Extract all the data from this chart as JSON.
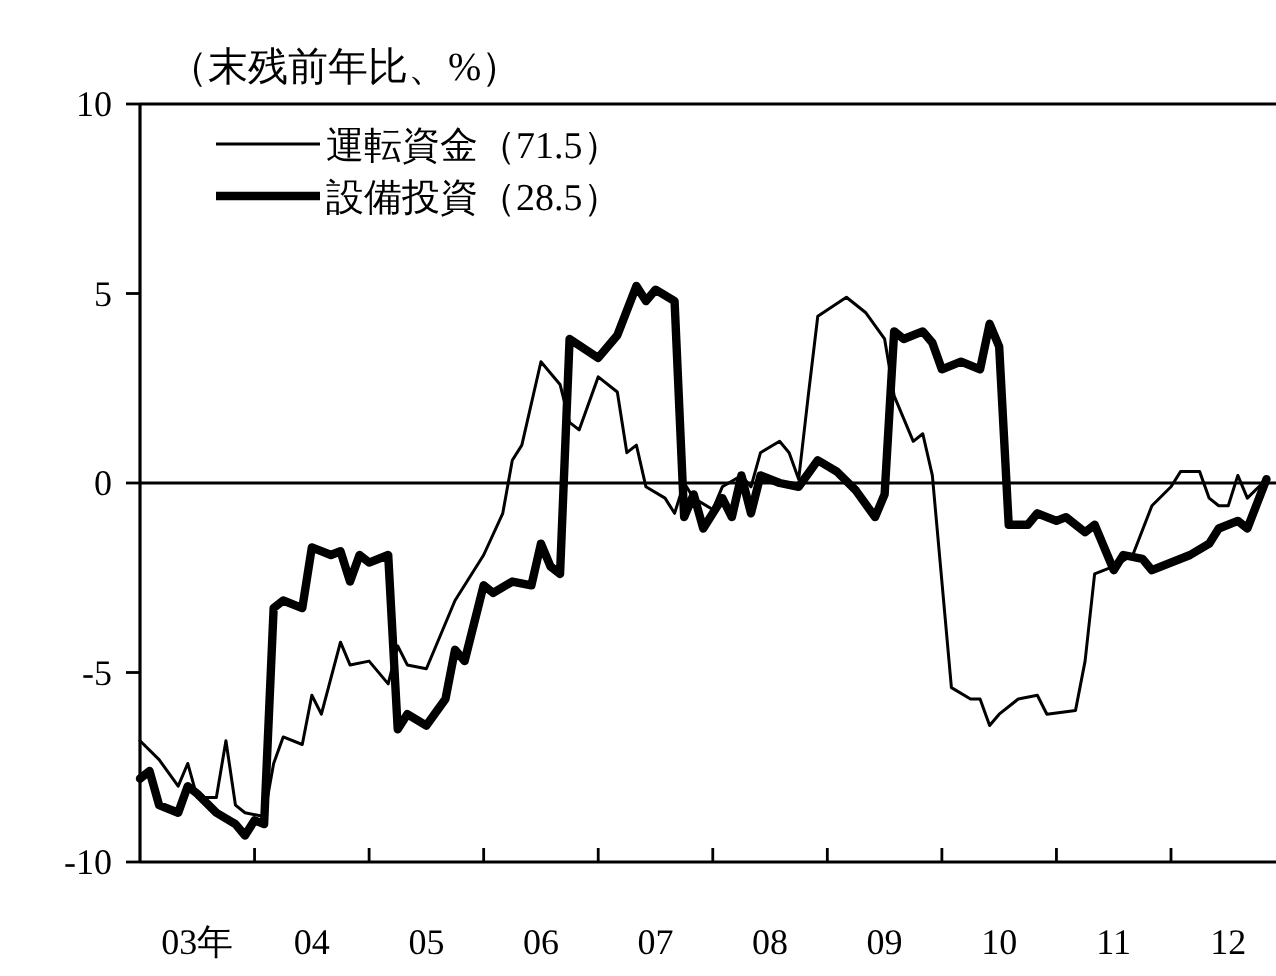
{
  "chart_data": {
    "type": "line",
    "ylabel": "（末残前年比、%）",
    "xlim": [
      "2003-01",
      "2012-12"
    ],
    "ylim": [
      -10,
      10
    ],
    "yticks": [
      -10,
      -5,
      0,
      5,
      10
    ],
    "xticks": [
      {
        "value": "2004-01",
        "label": null
      },
      {
        "value": "2005-01",
        "label": null
      },
      {
        "value": "2006-01",
        "label": null
      },
      {
        "value": "2007-01",
        "label": null
      },
      {
        "value": "2008-01",
        "label": null
      },
      {
        "value": "2009-01",
        "label": null
      },
      {
        "value": "2010-01",
        "label": null
      },
      {
        "value": "2011-01",
        "label": null
      },
      {
        "value": "2012-01",
        "label": null
      },
      {
        "value": "2003-07",
        "label": "03年"
      },
      {
        "value": "2004-07",
        "label": "04"
      },
      {
        "value": "2005-07",
        "label": "05"
      },
      {
        "value": "2006-07",
        "label": "06"
      },
      {
        "value": "2007-07",
        "label": "07"
      },
      {
        "value": "2008-07",
        "label": "08"
      },
      {
        "value": "2009-07",
        "label": "09"
      },
      {
        "value": "2010-07",
        "label": "10"
      },
      {
        "value": "2011-07",
        "label": "11"
      },
      {
        "value": "2012-07",
        "label": "12"
      }
    ],
    "legend": "top left",
    "grid": false,
    "line_style": "solid",
    "marker": "none",
    "ref_lines": [
      {
        "axis": "y",
        "value": 0,
        "color": "#000000"
      }
    ],
    "series": [
      {
        "name": "運転資金（71.5）",
        "color": "#000000",
        "x": [
          "2003-01",
          "2003-03",
          "2003-05",
          "2003-06",
          "2003-07",
          "2003-09",
          "2003-10",
          "2003-11",
          "2003-12",
          "2004-02",
          "2004-03",
          "2004-04",
          "2004-06",
          "2004-07",
          "2004-08",
          "2004-10",
          "2004-11",
          "2005-01",
          "2005-03",
          "2005-04",
          "2005-05",
          "2005-07",
          "2005-10",
          "2006-01",
          "2006-03",
          "2006-04",
          "2006-05",
          "2006-07",
          "2006-09",
          "2006-10",
          "2006-11",
          "2007-01",
          "2007-03",
          "2007-04",
          "2007-05",
          "2007-06",
          "2007-08",
          "2007-09",
          "2007-10",
          "2007-11",
          "2008-01",
          "2008-02",
          "2008-04",
          "2008-05",
          "2008-06",
          "2008-08",
          "2008-09",
          "2008-10",
          "2008-11",
          "2008-12",
          "2009-03",
          "2009-05",
          "2009-07",
          "2009-08",
          "2009-09",
          "2009-10",
          "2009-11",
          "2009-12",
          "2010-02",
          "2010-04",
          "2010-05",
          "2010-06",
          "2010-07",
          "2010-09",
          "2010-11",
          "2010-12",
          "2011-03",
          "2011-04",
          "2011-05",
          "2011-07",
          "2011-09",
          "2011-11",
          "2012-01",
          "2012-02",
          "2012-04",
          "2012-05",
          "2012-06",
          "2012-07",
          "2012-08",
          "2012-09",
          "2012-11"
        ],
        "values": [
          -6.8,
          -7.3,
          -8.0,
          -7.4,
          -8.3,
          -8.3,
          -6.8,
          -8.5,
          -8.7,
          -8.8,
          -7.4,
          -6.7,
          -6.9,
          -5.6,
          -6.1,
          -4.2,
          -4.8,
          -4.7,
          -5.3,
          -4.3,
          -4.8,
          -4.9,
          -3.1,
          -1.9,
          -0.8,
          0.6,
          1.0,
          3.2,
          2.6,
          1.6,
          1.4,
          2.8,
          2.4,
          0.8,
          1.0,
          -0.1,
          -0.4,
          -0.8,
          0.0,
          -0.4,
          -0.7,
          -0.1,
          0.2,
          -0.1,
          0.8,
          1.1,
          0.8,
          0.1,
          2.3,
          4.4,
          4.9,
          4.5,
          3.8,
          2.3,
          1.7,
          1.1,
          1.3,
          0.2,
          -5.4,
          -5.7,
          -5.7,
          -6.4,
          -6.1,
          -5.7,
          -5.6,
          -6.1,
          -6.0,
          -4.7,
          -2.4,
          -2.2,
          -1.9,
          -0.6,
          -0.1,
          0.3,
          0.3,
          -0.4,
          -0.6,
          -0.6,
          0.2,
          -0.4,
          0.1
        ]
      },
      {
        "name": "設備投資（28.5）",
        "color": "#000000",
        "x": [
          "2003-01",
          "2003-02",
          "2003-03",
          "2003-05",
          "2003-06",
          "2003-07",
          "2003-09",
          "2003-11",
          "2003-12",
          "2004-01",
          "2004-02",
          "2004-03",
          "2004-04",
          "2004-06",
          "2004-07",
          "2004-09",
          "2004-10",
          "2004-11",
          "2004-12",
          "2005-01",
          "2005-03",
          "2005-04",
          "2005-05",
          "2005-07",
          "2005-09",
          "2005-10",
          "2005-11",
          "2006-01",
          "2006-02",
          "2006-04",
          "2006-06",
          "2006-07",
          "2006-08",
          "2006-09",
          "2006-10",
          "2007-01",
          "2007-03",
          "2007-05",
          "2007-06",
          "2007-07",
          "2007-09",
          "2007-10",
          "2007-11",
          "2007-12",
          "2008-02",
          "2008-03",
          "2008-04",
          "2008-05",
          "2008-06",
          "2008-08",
          "2008-10",
          "2008-12",
          "2009-02",
          "2009-04",
          "2009-06",
          "2009-07",
          "2009-08",
          "2009-09",
          "2009-11",
          "2009-12",
          "2010-01",
          "2010-03",
          "2010-05",
          "2010-06",
          "2010-07",
          "2010-08",
          "2010-10",
          "2010-11",
          "2011-01",
          "2011-02",
          "2011-04",
          "2011-05",
          "2011-07",
          "2011-08",
          "2011-10",
          "2011-11",
          "2012-03",
          "2012-05",
          "2012-06",
          "2012-08",
          "2012-09",
          "2012-11"
        ],
        "values": [
          -7.8,
          -7.6,
          -8.5,
          -8.7,
          -8.0,
          -8.2,
          -8.7,
          -9.0,
          -9.3,
          -8.9,
          -9.0,
          -3.3,
          -3.1,
          -3.3,
          -1.7,
          -1.9,
          -1.8,
          -2.6,
          -1.9,
          -2.1,
          -1.9,
          -6.5,
          -6.1,
          -6.4,
          -5.7,
          -4.4,
          -4.7,
          -2.7,
          -2.9,
          -2.6,
          -2.7,
          -1.6,
          -2.2,
          -2.4,
          3.8,
          3.3,
          3.9,
          5.2,
          4.8,
          5.1,
          4.8,
          -0.9,
          -0.3,
          -1.2,
          -0.4,
          -0.9,
          0.2,
          -0.8,
          0.2,
          0.0,
          -0.1,
          0.6,
          0.3,
          -0.2,
          -0.9,
          -0.3,
          4.0,
          3.8,
          4.0,
          3.7,
          3.0,
          3.2,
          3.0,
          4.2,
          3.6,
          -1.1,
          -1.1,
          -0.8,
          -1.0,
          -0.9,
          -1.3,
          -1.1,
          -2.3,
          -1.9,
          -2.0,
          -2.3,
          -1.9,
          -1.6,
          -1.2,
          -1.0,
          -1.2,
          0.1
        ]
      }
    ]
  }
}
